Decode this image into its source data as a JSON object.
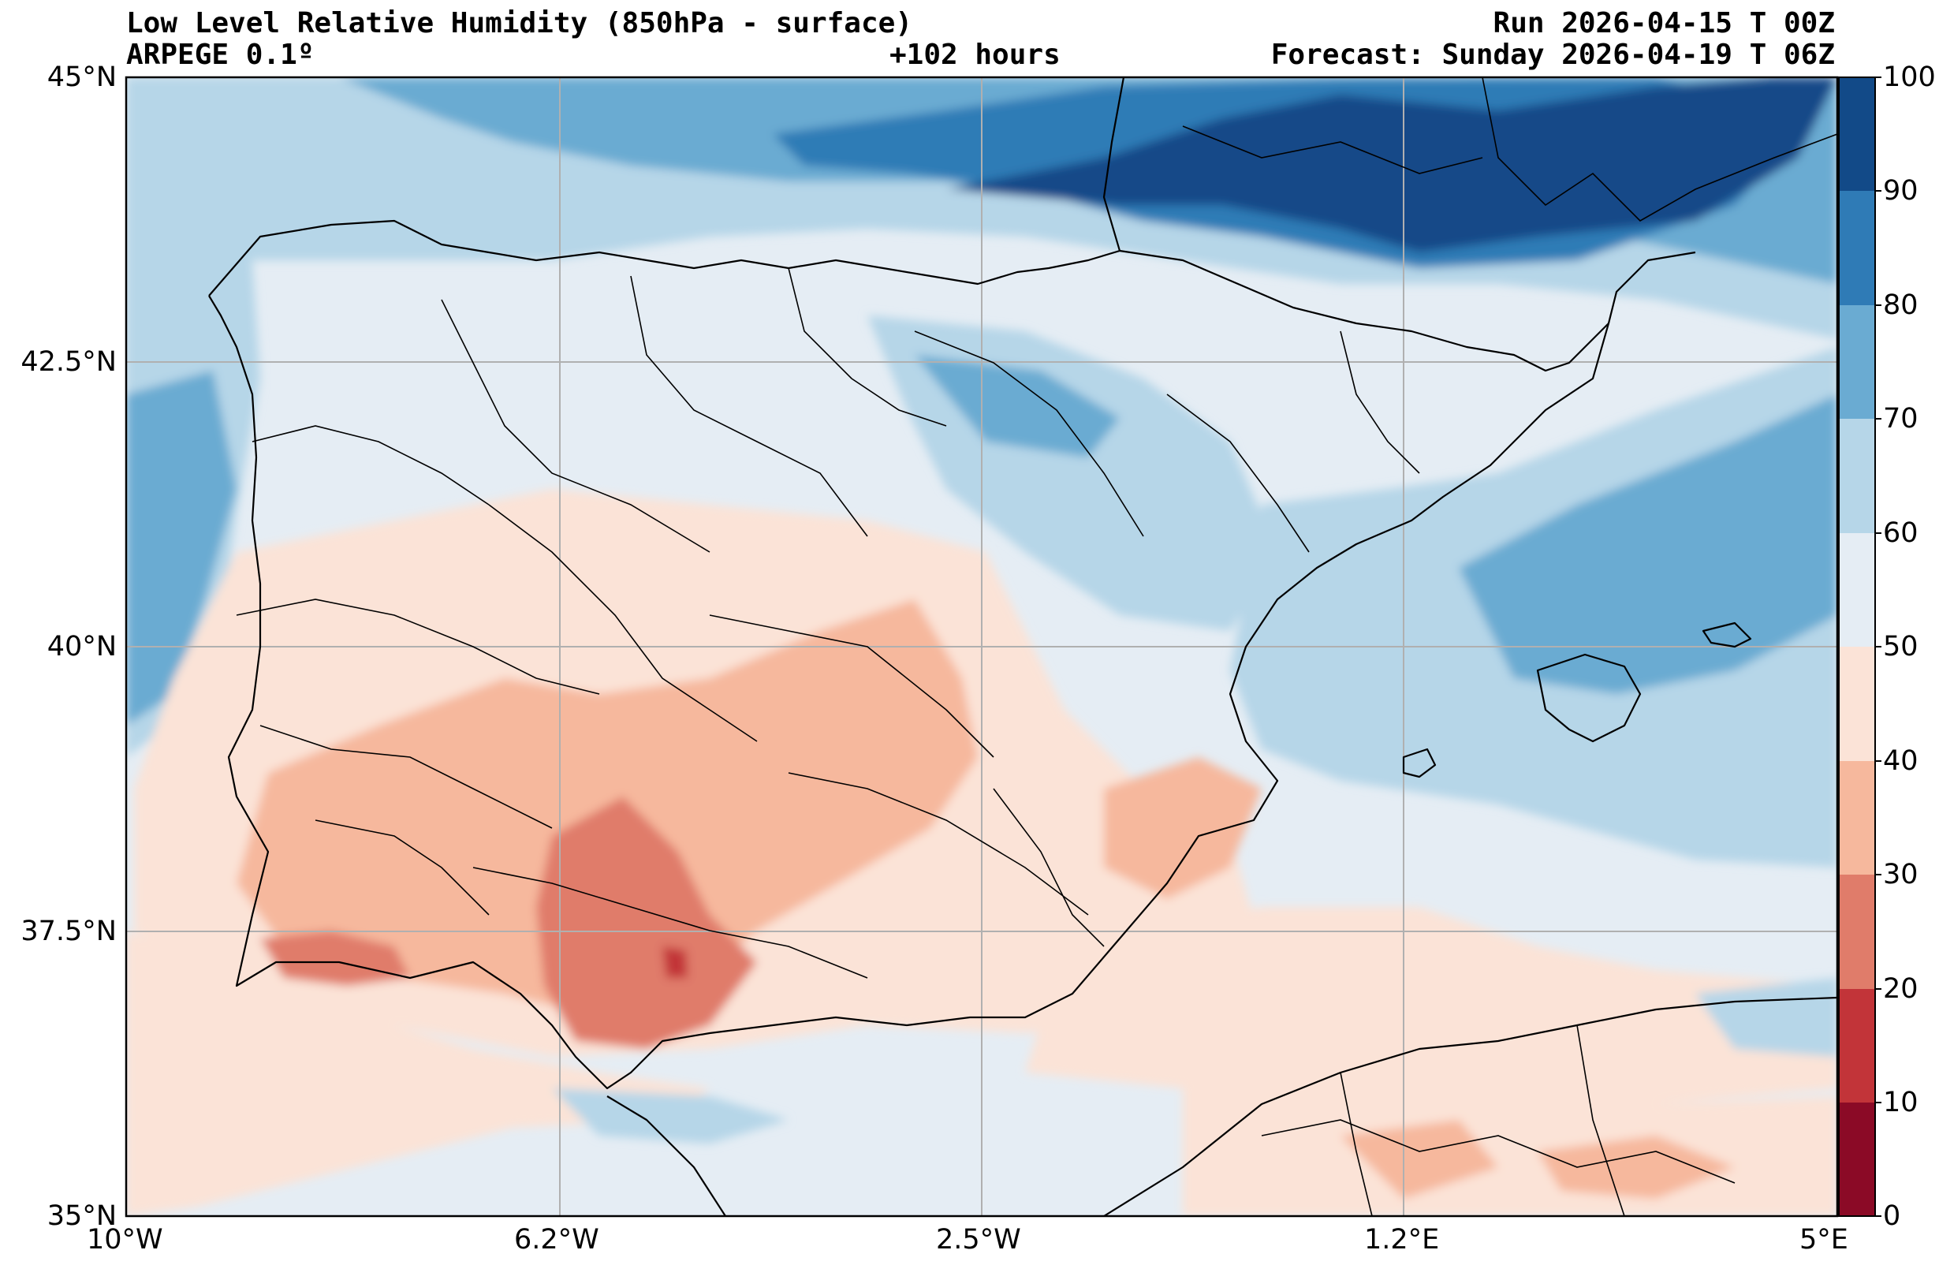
{
  "header": {
    "title": "Low Level Relative Humidity (850hPa - surface)",
    "model": "ARPEGE 0.1º",
    "lead": "+102 hours",
    "run": "Run 2026-04-15 T 00Z",
    "forecast": "Forecast: Sunday 2026-04-19 T 06Z"
  },
  "map": {
    "lon_range": [
      -10,
      5
    ],
    "lat_range": [
      35,
      45
    ],
    "lon_ticks": [
      {
        "value": -10,
        "label": "10°W"
      },
      {
        "value": -6.2,
        "label": "6.2°W"
      },
      {
        "value": -2.5,
        "label": "2.5°W"
      },
      {
        "value": 1.2,
        "label": "1.2°E"
      },
      {
        "value": 5,
        "label": "5°E"
      }
    ],
    "lat_ticks": [
      {
        "value": 45,
        "label": "45°N"
      },
      {
        "value": 42.5,
        "label": "42.5°N"
      },
      {
        "value": 40,
        "label": "40°N"
      },
      {
        "value": 37.5,
        "label": "37.5°N"
      },
      {
        "value": 35,
        "label": "35°N"
      }
    ]
  },
  "colorbar": {
    "labels": [
      "0",
      "10",
      "20",
      "30",
      "40",
      "50",
      "60",
      "70",
      "80",
      "90",
      "100"
    ],
    "colors": [
      "#8b0a26",
      "#c23439",
      "#e07c6a",
      "#f6b89d",
      "#fbe3d7",
      "#e5edf4",
      "#b6d6e8",
      "#6aabd2",
      "#2f7bb6",
      "#124a88"
    ]
  }
}
